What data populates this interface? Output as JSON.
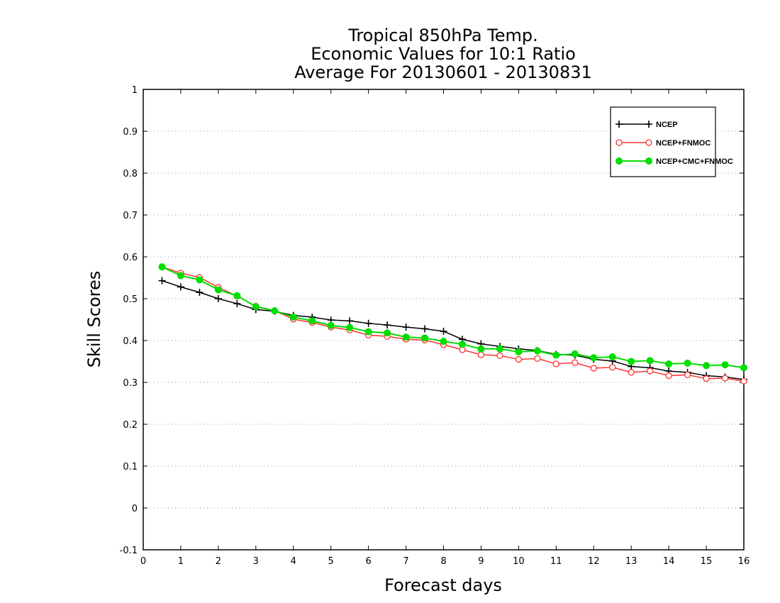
{
  "chart_data": {
    "type": "line",
    "title": [
      "Tropical 850hPa Temp.",
      "Economic Values for 10:1 Ratio",
      "Average For 20130601 - 20130831"
    ],
    "xlabel": "Forecast days",
    "ylabel": "Skill Scores",
    "xlim": [
      0,
      16
    ],
    "ylim": [
      -0.1,
      1
    ],
    "xticks": [
      "0",
      "1",
      "2",
      "3",
      "4",
      "5",
      "6",
      "7",
      "8",
      "9",
      "10",
      "11",
      "12",
      "13",
      "14",
      "15",
      "16"
    ],
    "yticks": [
      "-0.1",
      "0",
      "0.1",
      "0.2",
      "0.3",
      "0.4",
      "0.5",
      "0.6",
      "0.7",
      "0.8",
      "0.9",
      "1"
    ],
    "grid": "horizontal-dotted",
    "legend_position": "top-right",
    "x": [
      0.5,
      1,
      1.5,
      2,
      2.5,
      3,
      3.5,
      4,
      4.5,
      5,
      5.5,
      6,
      6.5,
      7,
      7.5,
      8,
      8.5,
      9,
      9.5,
      10,
      10.5,
      11,
      11.5,
      12,
      12.5,
      13,
      13.5,
      14,
      14.5,
      15,
      15.5,
      16
    ],
    "series": [
      {
        "name": "NCEP",
        "color": "#000000",
        "marker": "plus",
        "values": [
          0.543,
          0.528,
          0.515,
          0.5,
          0.488,
          0.474,
          0.47,
          0.46,
          0.456,
          0.449,
          0.447,
          0.441,
          0.437,
          0.432,
          0.428,
          0.422,
          0.403,
          0.392,
          0.386,
          0.38,
          0.376,
          0.367,
          0.365,
          0.355,
          0.351,
          0.338,
          0.335,
          0.327,
          0.324,
          0.316,
          0.313,
          0.307
        ]
      },
      {
        "name": "NCEP+FNMOC",
        "color": "#ff3333",
        "marker": "open-circle",
        "values": [
          0.576,
          0.561,
          0.551,
          0.527,
          0.506,
          0.482,
          0.471,
          0.451,
          0.443,
          0.432,
          0.425,
          0.413,
          0.41,
          0.403,
          0.401,
          0.39,
          0.378,
          0.366,
          0.364,
          0.355,
          0.357,
          0.344,
          0.347,
          0.334,
          0.336,
          0.324,
          0.327,
          0.316,
          0.318,
          0.309,
          0.31,
          0.303
        ]
      },
      {
        "name": "NCEP+CMC+FNMOC",
        "color": "#00dd00",
        "marker": "filled-circle",
        "values": [
          0.576,
          0.555,
          0.545,
          0.521,
          0.507,
          0.481,
          0.471,
          0.456,
          0.447,
          0.436,
          0.431,
          0.421,
          0.418,
          0.408,
          0.406,
          0.398,
          0.391,
          0.38,
          0.38,
          0.373,
          0.375,
          0.365,
          0.368,
          0.359,
          0.361,
          0.35,
          0.352,
          0.344,
          0.346,
          0.34,
          0.342,
          0.335
        ]
      }
    ]
  }
}
